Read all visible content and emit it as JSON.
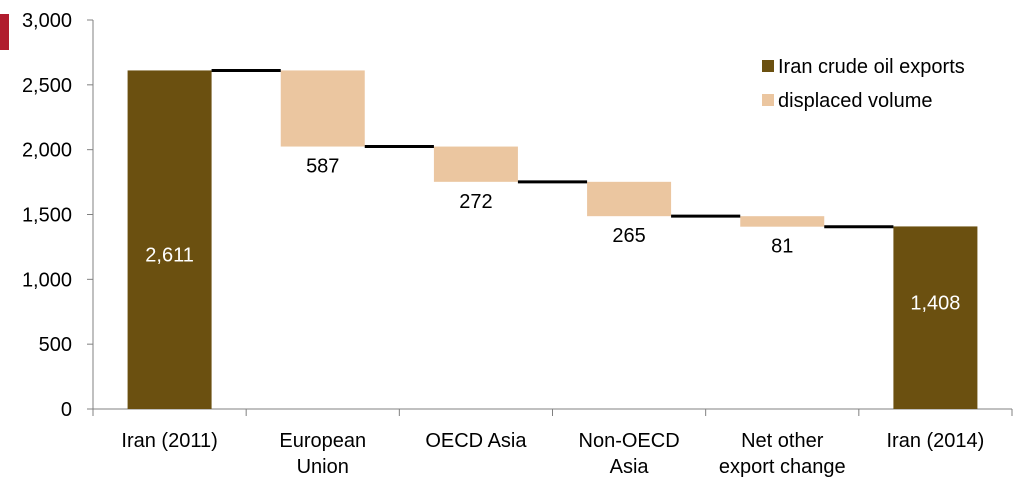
{
  "colors": {
    "exports": "#6b5010",
    "displaced": "#ebc6a0",
    "connector": "#000000",
    "axis": "#808080",
    "accent": "#b01c2e",
    "label_on_bar": "#ffffff",
    "label_below": "#000000"
  },
  "chart_data": {
    "type": "bar",
    "subtype": "waterfall",
    "categories": [
      "Iran (2011)",
      "European Union",
      "OECD Asia",
      "Non-OECD Asia",
      "Net other export change",
      "Iran (2014)"
    ],
    "category_lines": [
      [
        "Iran (2011)"
      ],
      [
        "European",
        "Union"
      ],
      [
        "OECD Asia"
      ],
      [
        "Non-OECD",
        "Asia"
      ],
      [
        "Net other",
        "export change"
      ],
      [
        "Iran (2014)"
      ]
    ],
    "values": [
      2611,
      -587,
      -272,
      -265,
      -81,
      1408
    ],
    "data_labels": [
      "2,611",
      "587",
      "272",
      "265",
      "81",
      "1,408"
    ],
    "series": [
      {
        "name": "Iran crude oil exports",
        "color_key": "exports"
      },
      {
        "name": "displaced volume",
        "color_key": "displaced"
      }
    ],
    "ylim": [
      0,
      3000
    ],
    "yticks": [
      0,
      500,
      1000,
      1500,
      2000,
      2500,
      3000
    ],
    "ytick_labels": [
      "0",
      "500",
      "1,000",
      "1,500",
      "2,000",
      "2,500",
      "3,000"
    ],
    "legend_position": "top-right",
    "grid": false
  }
}
